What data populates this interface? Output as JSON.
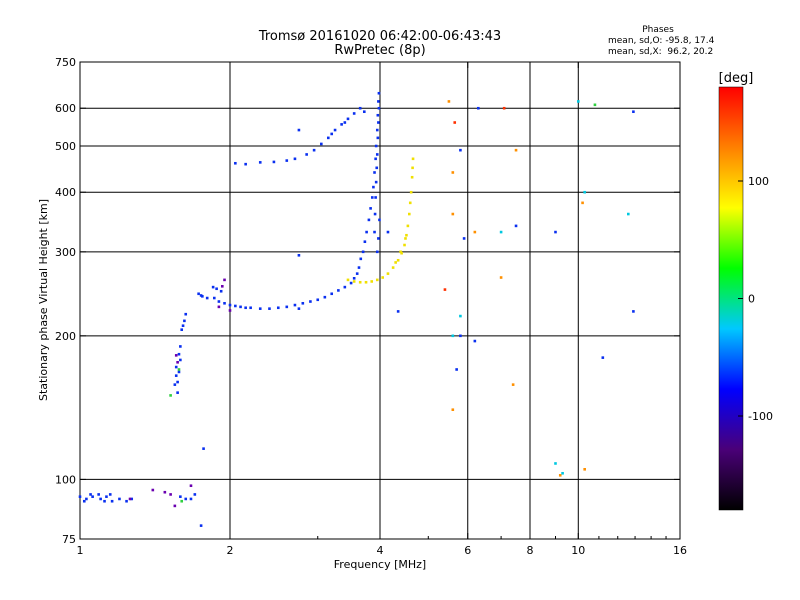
{
  "chart_data": {
    "type": "scatter",
    "title": "Tromsø 20161020 06:42:00-06:43:43",
    "subtitle": "RwPretec (8p)",
    "stats": {
      "heading": "Phases",
      "line_o": "mean, sd,O: -95.8, 17.4",
      "line_x": "mean, sd,X:  96.2, 20.2"
    },
    "xlabel": "Frequency [MHz]",
    "ylabel": "Stationary phase Virtual Height [km]",
    "x_scale": "log",
    "y_scale": "log",
    "xlim": [
      1,
      16
    ],
    "ylim": [
      75,
      750
    ],
    "x_ticks": [
      1,
      2,
      4,
      6,
      8,
      10,
      16
    ],
    "y_ticks": [
      75,
      100,
      200,
      300,
      400,
      500,
      600,
      750
    ],
    "x_gridlines": [
      2,
      4,
      6,
      8,
      10
    ],
    "y_gridlines": [
      100,
      200,
      300,
      400,
      500,
      600
    ],
    "colorbar": {
      "label": "[deg]",
      "ticks": [
        100,
        0,
        -100
      ],
      "range": [
        -180,
        180
      ],
      "colors": [
        "#000000",
        "#4a0078",
        "#0000ff",
        "#00c8ff",
        "#00ff00",
        "#ffff00",
        "#ff8000",
        "#ff0000"
      ]
    },
    "series": [
      {
        "color": "#0a30f0",
        "points": [
          [
            1.0,
            92
          ],
          [
            1.03,
            91
          ],
          [
            1.06,
            92
          ],
          [
            1.1,
            91
          ],
          [
            1.13,
            92
          ],
          [
            1.16,
            90
          ],
          [
            1.2,
            91
          ],
          [
            1.24,
            90
          ],
          [
            1.05,
            93
          ],
          [
            1.09,
            93
          ],
          [
            1.15,
            93
          ],
          [
            1.27,
            91
          ],
          [
            1.02,
            90
          ],
          [
            1.12,
            90
          ],
          [
            1.59,
            92
          ],
          [
            1.63,
            91
          ],
          [
            1.67,
            91
          ],
          [
            1.7,
            93
          ],
          [
            1.55,
            158
          ],
          [
            1.56,
            165
          ],
          [
            1.57,
            152
          ],
          [
            1.56,
            172
          ],
          [
            1.58,
            168
          ],
          [
            1.59,
            178
          ],
          [
            1.57,
            160
          ],
          [
            1.58,
            183
          ],
          [
            1.59,
            190
          ],
          [
            1.6,
            206
          ],
          [
            1.62,
            215
          ],
          [
            1.63,
            222
          ],
          [
            1.61,
            210
          ],
          [
            1.73,
            245
          ],
          [
            1.75,
            243
          ],
          [
            1.76,
            242
          ],
          [
            1.8,
            240
          ],
          [
            1.85,
            253
          ],
          [
            1.88,
            251
          ],
          [
            1.92,
            248
          ],
          [
            1.77,
            116
          ],
          [
            1.75,
            80
          ],
          [
            1.86,
            240
          ],
          [
            1.9,
            236
          ],
          [
            1.95,
            234
          ],
          [
            2.0,
            232
          ],
          [
            2.05,
            231
          ],
          [
            2.1,
            230
          ],
          [
            2.15,
            229
          ],
          [
            2.2,
            229
          ],
          [
            2.3,
            228
          ],
          [
            2.4,
            228
          ],
          [
            2.5,
            229
          ],
          [
            2.6,
            230
          ],
          [
            2.7,
            232
          ],
          [
            2.8,
            234
          ],
          [
            2.9,
            236
          ],
          [
            3.0,
            238
          ],
          [
            3.1,
            241
          ],
          [
            3.2,
            245
          ],
          [
            3.3,
            249
          ],
          [
            3.4,
            253
          ],
          [
            3.5,
            258
          ],
          [
            3.55,
            264
          ],
          [
            3.6,
            270
          ],
          [
            3.63,
            278
          ],
          [
            3.66,
            290
          ],
          [
            3.7,
            300
          ],
          [
            3.73,
            315
          ],
          [
            3.76,
            330
          ],
          [
            3.8,
            350
          ],
          [
            3.83,
            370
          ],
          [
            3.86,
            390
          ],
          [
            3.88,
            410
          ],
          [
            3.9,
            440
          ],
          [
            3.92,
            470
          ],
          [
            3.93,
            500
          ],
          [
            3.95,
            540
          ],
          [
            3.96,
            580
          ],
          [
            3.97,
            620
          ],
          [
            3.98,
            645
          ],
          [
            3.98,
            600
          ],
          [
            3.97,
            560
          ],
          [
            3.96,
            520
          ],
          [
            3.95,
            480
          ],
          [
            3.94,
            450
          ],
          [
            3.93,
            420
          ],
          [
            3.92,
            390
          ],
          [
            3.91,
            360
          ],
          [
            3.9,
            330
          ],
          [
            3.95,
            300
          ],
          [
            3.97,
            320
          ],
          [
            3.99,
            350
          ],
          [
            2.05,
            460
          ],
          [
            2.15,
            458
          ],
          [
            2.3,
            462
          ],
          [
            2.45,
            463
          ],
          [
            2.6,
            466
          ],
          [
            2.7,
            470
          ],
          [
            2.85,
            480
          ],
          [
            2.95,
            490
          ],
          [
            3.05,
            505
          ],
          [
            3.15,
            520
          ],
          [
            3.25,
            540
          ],
          [
            3.35,
            555
          ],
          [
            3.45,
            570
          ],
          [
            3.55,
            585
          ],
          [
            3.65,
            600
          ],
          [
            3.72,
            590
          ],
          [
            3.4,
            560
          ],
          [
            3.2,
            530
          ],
          [
            2.75,
            228
          ],
          [
            2.75,
            295
          ],
          [
            2.75,
            540
          ],
          [
            4.35,
            225
          ],
          [
            4.15,
            330
          ],
          [
            5.7,
            170
          ],
          [
            5.8,
            200
          ],
          [
            6.2,
            195
          ],
          [
            5.9,
            320
          ],
          [
            5.8,
            490
          ],
          [
            9.0,
            330
          ],
          [
            6.3,
            600
          ],
          [
            7.5,
            340
          ],
          [
            12.9,
            225
          ],
          [
            12.9,
            590
          ],
          [
            11.2,
            180
          ]
        ]
      },
      {
        "color": "#6a00b0",
        "points": [
          [
            1.26,
            91
          ],
          [
            1.4,
            95
          ],
          [
            1.48,
            94
          ],
          [
            1.52,
            93
          ],
          [
            1.55,
            88
          ],
          [
            1.56,
            182
          ],
          [
            1.57,
            176
          ],
          [
            1.67,
            97
          ],
          [
            1.9,
            230
          ],
          [
            2.0,
            226
          ],
          [
            1.93,
            254
          ],
          [
            1.95,
            262
          ]
        ]
      },
      {
        "color": "#f0e000",
        "points": [
          [
            3.45,
            262
          ],
          [
            3.55,
            260
          ],
          [
            3.65,
            259
          ],
          [
            3.75,
            259
          ],
          [
            3.85,
            260
          ],
          [
            3.95,
            262
          ],
          [
            4.05,
            265
          ],
          [
            4.15,
            270
          ],
          [
            4.25,
            278
          ],
          [
            4.35,
            288
          ],
          [
            4.42,
            298
          ],
          [
            4.48,
            310
          ],
          [
            4.52,
            325
          ],
          [
            4.55,
            340
          ],
          [
            4.58,
            360
          ],
          [
            4.6,
            380
          ],
          [
            4.62,
            400
          ],
          [
            4.64,
            430
          ],
          [
            4.65,
            450
          ],
          [
            4.66,
            470
          ],
          [
            4.5,
            320
          ],
          [
            4.4,
            300
          ],
          [
            4.3,
            285
          ]
        ]
      },
      {
        "color": "#ff9000",
        "points": [
          [
            5.5,
            620
          ],
          [
            5.6,
            440
          ],
          [
            5.6,
            360
          ],
          [
            5.6,
            140
          ],
          [
            7.0,
            265
          ],
          [
            7.4,
            158
          ],
          [
            10.2,
            380
          ],
          [
            10.3,
            105
          ],
          [
            9.2,
            102
          ],
          [
            7.5,
            490
          ],
          [
            6.2,
            330
          ]
        ]
      },
      {
        "color": "#ff3000",
        "points": [
          [
            5.65,
            560
          ],
          [
            7.1,
            600
          ],
          [
            5.4,
            250
          ]
        ]
      },
      {
        "color": "#00c8e0",
        "points": [
          [
            5.8,
            220
          ],
          [
            9.3,
            103
          ],
          [
            9.0,
            108
          ],
          [
            10.0,
            620
          ],
          [
            10.3,
            400
          ],
          [
            12.6,
            360
          ],
          [
            5.6,
            200
          ],
          [
            7.0,
            330
          ]
        ]
      },
      {
        "color": "#30d040",
        "points": [
          [
            1.52,
            150
          ],
          [
            1.58,
            170
          ],
          [
            10.8,
            610
          ],
          [
            1.6,
            90
          ]
        ]
      }
    ]
  }
}
